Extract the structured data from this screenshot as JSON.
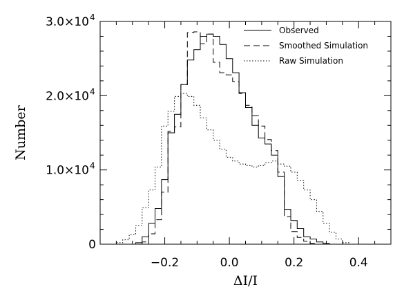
{
  "chart_data": {
    "type": "histogram",
    "xlabel": "ΔI/I",
    "ylabel": "Number",
    "xlim": [
      -0.4,
      0.5
    ],
    "ylim": [
      0,
      30000
    ],
    "xticks": [
      -0.2,
      0.0,
      0.2,
      0.4
    ],
    "xtick_labels": [
      "−0.2",
      "0.0",
      "0.2",
      "0.4"
    ],
    "yticks": [
      {
        "value": 0,
        "mantissa": "0",
        "exp": ""
      },
      {
        "value": 10000,
        "mantissa": "1.0×10",
        "exp": "4"
      },
      {
        "value": 20000,
        "mantissa": "2.0×10",
        "exp": "4"
      },
      {
        "value": 30000,
        "mantissa": "3.0×10",
        "exp": "4"
      }
    ],
    "legend_position": "top-right",
    "bin_width": 0.02,
    "series": [
      {
        "name": "Observed",
        "style": "solid",
        "bin_starts": [
          -0.29,
          -0.27,
          -0.25,
          -0.23,
          -0.21,
          -0.19,
          -0.17,
          -0.15,
          -0.13,
          -0.11,
          -0.09,
          -0.07,
          -0.05,
          -0.03,
          -0.01,
          0.01,
          0.03,
          0.05,
          0.07,
          0.09,
          0.11,
          0.13,
          0.15,
          0.17,
          0.19,
          0.21,
          0.23,
          0.25,
          0.27,
          0.29,
          0.31
        ],
        "values": [
          200,
          1000,
          2800,
          4800,
          8700,
          15000,
          17500,
          21500,
          24800,
          26200,
          28000,
          28300,
          28000,
          26900,
          25000,
          23100,
          20400,
          18400,
          16000,
          14300,
          13500,
          12000,
          9100,
          4700,
          3200,
          2100,
          1000,
          700,
          300,
          100,
          0
        ]
      },
      {
        "name": "Smoothed Simulation",
        "style": "dashed",
        "bin_starts": [
          -0.27,
          -0.25,
          -0.23,
          -0.21,
          -0.19,
          -0.17,
          -0.15,
          -0.13,
          -0.11,
          -0.09,
          -0.07,
          -0.05,
          -0.03,
          -0.01,
          0.01,
          0.03,
          0.05,
          0.07,
          0.09,
          0.11,
          0.13,
          0.15,
          0.17,
          0.19,
          0.21,
          0.23,
          0.25,
          0.27
        ],
        "values": [
          300,
          1400,
          3300,
          7000,
          15200,
          15800,
          21500,
          28500,
          28600,
          27000,
          28300,
          24500,
          23100,
          22800,
          21900,
          20300,
          18700,
          17300,
          15900,
          14100,
          12600,
          9700,
          3700,
          1700,
          900,
          400,
          100,
          0
        ]
      },
      {
        "name": "Raw Simulation",
        "style": "dotted",
        "bin_starts": [
          -0.37,
          -0.35,
          -0.33,
          -0.31,
          -0.29,
          -0.27,
          -0.25,
          -0.23,
          -0.21,
          -0.19,
          -0.17,
          -0.15,
          -0.13,
          -0.11,
          -0.09,
          -0.07,
          -0.05,
          -0.03,
          -0.01,
          0.01,
          0.03,
          0.05,
          0.07,
          0.09,
          0.11,
          0.13,
          0.15,
          0.17,
          0.19,
          0.21,
          0.23,
          0.25,
          0.27,
          0.29,
          0.31,
          0.33,
          0.35,
          0.37
        ],
        "values": [
          0,
          200,
          600,
          1300,
          2500,
          4900,
          7300,
          10400,
          15900,
          17900,
          19900,
          20300,
          19900,
          18700,
          17000,
          15400,
          14000,
          12800,
          11700,
          11200,
          10800,
          10600,
          10400,
          10600,
          11000,
          11200,
          10800,
          10500,
          9700,
          8600,
          7300,
          6000,
          4400,
          2800,
          1600,
          700,
          200,
          0
        ]
      }
    ]
  }
}
